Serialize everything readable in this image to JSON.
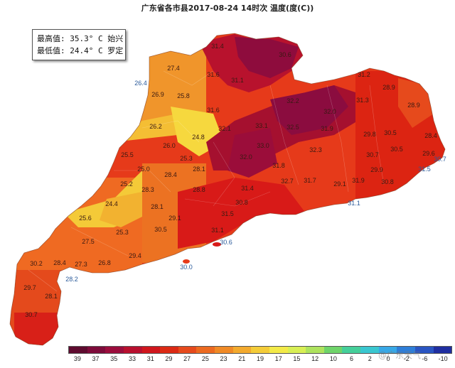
{
  "title": "广东省各市县2017-08-24 14时次 温度(度(C))",
  "stats": {
    "max_label": "最高值:",
    "max_value": "35.3° C 始兴",
    "min_label": "最低值:",
    "min_value": "24.4° C 罗定"
  },
  "legend": {
    "labels": [
      "39",
      "37",
      "35",
      "33",
      "31",
      "29",
      "27",
      "25",
      "23",
      "21",
      "19",
      "17",
      "15",
      "12",
      "10",
      "6",
      "2",
      "0",
      "-2",
      "-6",
      "-10"
    ],
    "colors": [
      "#5e0b2f",
      "#7d0b3a",
      "#9b0d3c",
      "#b8102e",
      "#d0161d",
      "#dc2a14",
      "#e64a1c",
      "#ec6a20",
      "#f08a26",
      "#f3aa2e",
      "#f4cc39",
      "#f3ea48",
      "#d8ef55",
      "#aee35e",
      "#6fd46a",
      "#45cf9a",
      "#3ac7d0",
      "#38a8e6",
      "#2e7ed8",
      "#2a55c2",
      "#1f2ea0"
    ]
  },
  "watermark": "@广东天气",
  "stations": [
    {
      "label": "31.4",
      "blue": false
    },
    {
      "label": "30.6",
      "blue": false
    },
    {
      "label": "31.6",
      "blue": false
    },
    {
      "label": "31.1",
      "blue": false
    },
    {
      "label": "27.4",
      "blue": false
    },
    {
      "label": "26.4",
      "blue": true
    },
    {
      "label": "26.9",
      "blue": false
    },
    {
      "label": "25.8",
      "blue": false
    },
    {
      "label": "31.6",
      "blue": false
    },
    {
      "label": "26.2",
      "blue": false
    },
    {
      "label": "24.8",
      "blue": false
    },
    {
      "label": "26.0",
      "blue": false
    },
    {
      "label": "25.5",
      "blue": false
    },
    {
      "label": "25.3",
      "blue": false
    },
    {
      "label": "25.0",
      "blue": false
    },
    {
      "label": "28.1",
      "blue": false
    },
    {
      "label": "28.4",
      "blue": false
    },
    {
      "label": "25.2",
      "blue": false
    },
    {
      "label": "28.3",
      "blue": false
    },
    {
      "label": "28.8",
      "blue": false
    },
    {
      "label": "24.4",
      "blue": false
    },
    {
      "label": "28.1",
      "blue": false
    },
    {
      "label": "25.6",
      "blue": false
    },
    {
      "label": "29.1",
      "blue": false
    },
    {
      "label": "25.3",
      "blue": false
    },
    {
      "label": "30.5",
      "blue": false
    },
    {
      "label": "27.5",
      "blue": false
    },
    {
      "label": "29.4",
      "blue": false
    },
    {
      "label": "27.3",
      "blue": false
    },
    {
      "label": "26.8",
      "blue": false
    },
    {
      "label": "28.4",
      "blue": false
    },
    {
      "label": "30.2",
      "blue": false
    },
    {
      "label": "28.2",
      "blue": true
    },
    {
      "label": "29.7",
      "blue": false
    },
    {
      "label": "28.1",
      "blue": false
    },
    {
      "label": "30.7",
      "blue": false
    },
    {
      "label": "30.6",
      "blue": true
    },
    {
      "label": "30.0",
      "blue": true
    },
    {
      "label": "31.1",
      "blue": false
    },
    {
      "label": "31.5",
      "blue": false
    },
    {
      "label": "30.8",
      "blue": false
    },
    {
      "label": "31.7",
      "blue": false
    },
    {
      "label": "29.1",
      "blue": false
    },
    {
      "label": "31.1",
      "blue": true
    },
    {
      "label": "31.9",
      "blue": false
    },
    {
      "label": "30.8",
      "blue": false
    },
    {
      "label": "29.9",
      "blue": false
    },
    {
      "label": "30.7",
      "blue": false
    },
    {
      "label": "30.5",
      "blue": false
    },
    {
      "label": "31.5",
      "blue": true
    },
    {
      "label": "30.7",
      "blue": true
    },
    {
      "label": "29.6",
      "blue": false
    },
    {
      "label": "30.5",
      "blue": false
    },
    {
      "label": "29.8",
      "blue": false
    },
    {
      "label": "28.9",
      "blue": false
    },
    {
      "label": "28.9",
      "blue": false
    },
    {
      "label": "28.4",
      "blue": false
    },
    {
      "label": "31.3",
      "blue": false
    },
    {
      "label": "32.0",
      "blue": false
    },
    {
      "label": "32.2",
      "blue": false
    },
    {
      "label": "31.9",
      "blue": false
    },
    {
      "label": "32.5",
      "blue": false
    },
    {
      "label": "33.0",
      "blue": false
    },
    {
      "label": "32.0",
      "blue": false
    },
    {
      "label": "31.4",
      "blue": false
    },
    {
      "label": "32.7",
      "blue": false
    },
    {
      "label": "32.3",
      "blue": false
    },
    {
      "label": "33.1",
      "blue": false
    },
    {
      "label": "31.8",
      "blue": false
    },
    {
      "label": "32.1",
      "blue": false
    },
    {
      "label": "31.2",
      "blue": false
    }
  ]
}
